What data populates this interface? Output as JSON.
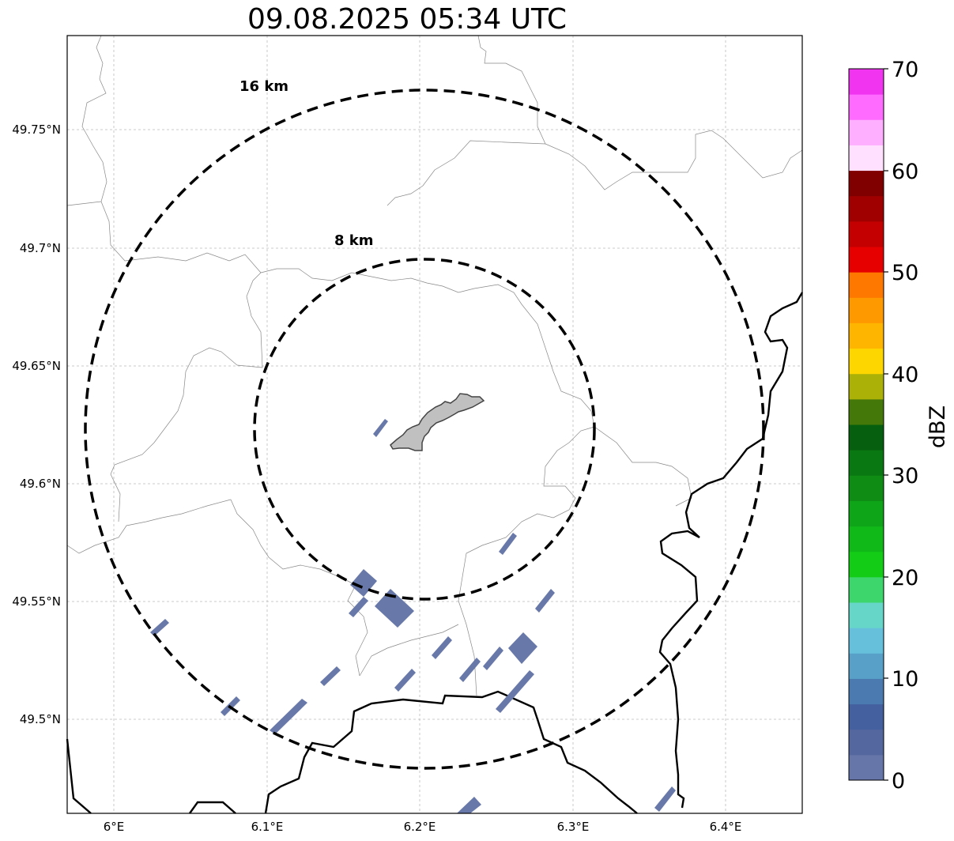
{
  "title": "09.08.2025 05:34 UTC",
  "rings": [
    {
      "label": "16 km",
      "radius_km": 16
    },
    {
      "label": "8 km",
      "radius_km": 8
    }
  ],
  "x_ticks": [
    "6°E",
    "6.1°E",
    "6.2°E",
    "6.3°E",
    "6.4°E"
  ],
  "y_ticks": [
    "49.75°N",
    "49.7°N",
    "49.65°N",
    "49.6°N",
    "49.55°N",
    "49.5°N"
  ],
  "colorbar": {
    "label": "dBZ",
    "ticks": [
      "70",
      "60",
      "50",
      "40",
      "30",
      "20",
      "10",
      "0"
    ],
    "colors": [
      "#6676a8",
      "#55679f",
      "#45609f",
      "#4b7ab0",
      "#58a0c8",
      "#66c0dc",
      "#66d6c8",
      "#3dd66c",
      "#13cc16",
      "#10b818",
      "#0fa518",
      "#0e8c14",
      "#0a7812",
      "#065f0e",
      "#447808",
      "#acb108",
      "#fdd600",
      "#fdb500",
      "#fe9a00",
      "#fe7800",
      "#e60000",
      "#c40000",
      "#a00000",
      "#800000",
      "#ffe0ff",
      "#ffafff",
      "#ff6bff",
      "#f034f0"
    ]
  },
  "colors": {
    "echo": "#6878a8",
    "city_fill": "#c0c0c0",
    "ring": "#000000",
    "border": "#000000",
    "admin": "#888888",
    "grid": "#bbbbbb"
  }
}
